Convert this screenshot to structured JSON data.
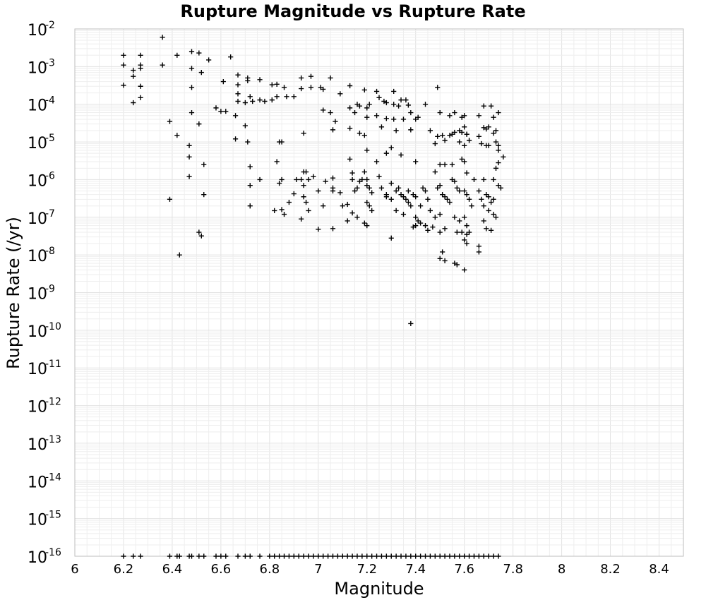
{
  "chart_data": {
    "type": "scatter",
    "title": "Rupture Magnitude vs Rupture Rate",
    "xlabel": "Magnitude",
    "ylabel": "Rupture Rate (/yr)",
    "xlim": [
      6.0,
      8.5
    ],
    "ylim": [
      1e-16,
      0.01
    ],
    "yscale": "log",
    "grid": true,
    "marker": "plus",
    "marker_color": "#000000",
    "x_ticks": [
      "6",
      "6.2",
      "6.4",
      "6.6",
      "6.8",
      "7",
      "7.2",
      "7.4",
      "7.6",
      "7.8",
      "8",
      "8.2",
      "8.4"
    ],
    "y_ticks": [
      {
        "base": "10",
        "exp": "-2"
      },
      {
        "base": "10",
        "exp": "-3"
      },
      {
        "base": "10",
        "exp": "-4"
      },
      {
        "base": "10",
        "exp": "-5"
      },
      {
        "base": "10",
        "exp": "-6"
      },
      {
        "base": "10",
        "exp": "-7"
      },
      {
        "base": "10",
        "exp": "-8"
      },
      {
        "base": "10",
        "exp": "-9"
      },
      {
        "base": "10",
        "exp": "-10"
      },
      {
        "base": "10",
        "exp": "-11"
      },
      {
        "base": "10",
        "exp": "-12"
      },
      {
        "base": "10",
        "exp": "-13"
      },
      {
        "base": "10",
        "exp": "-14"
      },
      {
        "base": "10",
        "exp": "-15"
      },
      {
        "base": "10",
        "exp": "-16"
      }
    ],
    "points": [
      [
        6.36,
        0.006
      ],
      [
        6.2,
        0.002
      ],
      [
        6.27,
        0.002
      ],
      [
        6.42,
        0.002
      ],
      [
        6.48,
        0.0025
      ],
      [
        6.51,
        0.0023
      ],
      [
        6.55,
        0.0015
      ],
      [
        6.64,
        0.0018
      ],
      [
        6.2,
        0.0011
      ],
      [
        6.27,
        0.0011
      ],
      [
        6.36,
        0.0011
      ],
      [
        6.24,
        0.0008
      ],
      [
        6.27,
        0.0009
      ],
      [
        6.48,
        0.0009
      ],
      [
        6.52,
        0.0007
      ],
      [
        6.24,
        0.00055
      ],
      [
        6.2,
        0.00032
      ],
      [
        6.27,
        0.0003
      ],
      [
        6.48,
        0.00028
      ],
      [
        6.27,
        0.00015
      ],
      [
        6.24,
        0.00011
      ],
      [
        6.61,
        0.0004
      ],
      [
        6.67,
        0.0006
      ],
      [
        6.71,
        0.0005
      ],
      [
        6.71,
        0.00042
      ],
      [
        6.76,
        0.00045
      ],
      [
        6.67,
        0.00033
      ],
      [
        6.81,
        0.00033
      ],
      [
        6.83,
        0.00034
      ],
      [
        6.86,
        0.00028
      ],
      [
        6.67,
        0.00019
      ],
      [
        6.72,
        0.00016
      ],
      [
        6.67,
        0.00012
      ],
      [
        6.7,
        0.00011
      ],
      [
        6.73,
        0.00012
      ],
      [
        6.76,
        0.00013
      ],
      [
        6.78,
        0.00012
      ],
      [
        6.81,
        0.00013
      ],
      [
        6.83,
        0.00016
      ],
      [
        6.87,
        0.00016
      ],
      [
        6.9,
        0.00016
      ],
      [
        6.93,
        0.00026
      ],
      [
        6.93,
        0.0005
      ],
      [
        6.97,
        0.00055
      ],
      [
        6.97,
        0.00028
      ],
      [
        7.01,
        0.00028
      ],
      [
        7.02,
        0.00025
      ],
      [
        7.05,
        0.0005
      ],
      [
        7.09,
        0.00019
      ],
      [
        7.13,
        0.00031
      ],
      [
        7.19,
        0.00024
      ],
      [
        7.24,
        0.00022
      ],
      [
        7.25,
        0.00015
      ],
      [
        7.27,
        0.00012
      ],
      [
        7.31,
        0.0001
      ],
      [
        7.34,
        0.00013
      ],
      [
        7.36,
        0.00013
      ],
      [
        7.33,
        9e-05
      ],
      [
        7.37,
        9.5e-05
      ],
      [
        7.31,
        0.00022
      ],
      [
        7.28,
        0.00011
      ],
      [
        7.17,
        9e-05
      ],
      [
        7.16,
        0.0001
      ],
      [
        7.21,
        0.0001
      ],
      [
        7.2,
        8e-05
      ],
      [
        7.13,
        8e-05
      ],
      [
        7.05,
        6e-05
      ],
      [
        7.02,
        7e-05
      ],
      [
        7.15,
        6e-05
      ],
      [
        7.2,
        4.5e-05
      ],
      [
        7.24,
        5e-05
      ],
      [
        7.28,
        4.2e-05
      ],
      [
        7.31,
        4e-05
      ],
      [
        7.35,
        4e-05
      ],
      [
        7.38,
        6e-05
      ],
      [
        7.41,
        4.5e-05
      ],
      [
        7.4,
        4e-05
      ],
      [
        7.44,
        0.0001
      ],
      [
        7.49,
        0.00028
      ],
      [
        7.5,
        6e-05
      ],
      [
        7.54,
        5e-05
      ],
      [
        7.56,
        6e-05
      ],
      [
        7.59,
        4.5e-05
      ],
      [
        7.6,
        5e-05
      ],
      [
        7.66,
        5e-05
      ],
      [
        7.68,
        9e-05
      ],
      [
        7.71,
        9e-05
      ],
      [
        7.72,
        4.5e-05
      ],
      [
        7.74,
        6e-05
      ],
      [
        7.07,
        3.5e-05
      ],
      [
        7.06,
        2.1e-05
      ],
      [
        7.13,
        2.3e-05
      ],
      [
        7.17,
        1.7e-05
      ],
      [
        7.19,
        1.5e-05
      ],
      [
        7.26,
        2.5e-05
      ],
      [
        7.32,
        2e-05
      ],
      [
        7.38,
        2.1e-05
      ],
      [
        7.46,
        2e-05
      ],
      [
        7.51,
        1.5e-05
      ],
      [
        7.52,
        1.1e-05
      ],
      [
        7.55,
        1.6e-05
      ],
      [
        7.58,
        2e-05
      ],
      [
        7.6,
        2.5e-05
      ],
      [
        7.61,
        1.6e-05
      ],
      [
        7.49,
        1.4e-05
      ],
      [
        7.54,
        1.5e-05
      ],
      [
        7.56,
        1.8e-05
      ],
      [
        7.59,
        1.8e-05
      ],
      [
        7.61,
        1.6e-05
      ],
      [
        7.62,
        1.1e-05
      ],
      [
        7.66,
        1.4e-05
      ],
      [
        7.68,
        2.4e-05
      ],
      [
        7.69,
        2.2e-05
      ],
      [
        7.7,
        2.5e-05
      ],
      [
        7.72,
        1.7e-05
      ],
      [
        7.73,
        2e-05
      ],
      [
        7.48,
        9e-06
      ],
      [
        7.58,
        1e-05
      ],
      [
        7.6,
        8e-06
      ],
      [
        7.67,
        9e-06
      ],
      [
        7.69,
        8e-06
      ],
      [
        7.7,
        8e-06
      ],
      [
        7.73,
        1e-05
      ],
      [
        7.74,
        6e-06
      ],
      [
        7.74,
        8e-06
      ],
      [
        7.76,
        4e-06
      ],
      [
        6.7,
        2.7e-05
      ],
      [
        6.71,
        1e-05
      ],
      [
        6.66,
        1.2e-05
      ],
      [
        6.84,
        1e-05
      ],
      [
        6.85,
        1e-05
      ],
      [
        6.83,
        3e-06
      ],
      [
        6.94,
        1.7e-05
      ],
      [
        6.58,
        8e-05
      ],
      [
        6.6,
        6.5e-05
      ],
      [
        6.62,
        6.5e-05
      ],
      [
        6.66,
        5e-05
      ],
      [
        6.48,
        6e-05
      ],
      [
        6.39,
        3.5e-05
      ],
      [
        6.51,
        3e-05
      ],
      [
        6.42,
        1.5e-05
      ],
      [
        6.47,
        8e-06
      ],
      [
        6.47,
        4e-06
      ],
      [
        6.53,
        2.5e-06
      ],
      [
        6.47,
        1.2e-06
      ],
      [
        6.53,
        4e-07
      ],
      [
        6.39,
        3e-07
      ],
      [
        6.51,
        4e-08
      ],
      [
        6.52,
        3.2e-08
      ],
      [
        6.43,
        1e-08
      ],
      [
        6.72,
        2.2e-06
      ],
      [
        6.72,
        7e-07
      ],
      [
        6.76,
        1e-06
      ],
      [
        6.72,
        2e-07
      ],
      [
        6.84,
        8e-07
      ],
      [
        6.85,
        1e-06
      ],
      [
        6.82,
        1.5e-07
      ],
      [
        6.85,
        1.6e-07
      ],
      [
        6.86,
        1.2e-07
      ],
      [
        6.88,
        2.5e-07
      ],
      [
        6.9,
        4.2e-07
      ],
      [
        6.91,
        1e-06
      ],
      [
        6.93,
        1e-06
      ],
      [
        6.94,
        1.6e-06
      ],
      [
        6.95,
        1.6e-06
      ],
      [
        6.94,
        7e-07
      ],
      [
        6.94,
        3.5e-07
      ],
      [
        6.95,
        2.5e-07
      ],
      [
        6.96,
        1.5e-07
      ],
      [
        6.93,
        9e-08
      ],
      [
        7.0,
        5e-07
      ],
      [
        7.0,
        4.8e-08
      ],
      [
        7.03,
        9e-07
      ],
      [
        7.06,
        6e-07
      ],
      [
        7.06,
        5e-07
      ],
      [
        7.06,
        1.1e-06
      ],
      [
        7.09,
        4.5e-07
      ],
      [
        7.1,
        2e-07
      ],
      [
        7.12,
        2.2e-07
      ],
      [
        7.12,
        8e-08
      ],
      [
        7.06,
        5e-08
      ],
      [
        7.02,
        2e-07
      ],
      [
        7.14,
        1e-06
      ],
      [
        7.15,
        5e-07
      ],
      [
        7.16,
        6e-07
      ],
      [
        7.17,
        9e-07
      ],
      [
        7.19,
        1.6e-06
      ],
      [
        7.2,
        1e-06
      ],
      [
        7.2,
        7e-07
      ],
      [
        7.21,
        6e-07
      ],
      [
        7.22,
        4.5e-07
      ],
      [
        7.2,
        2.5e-07
      ],
      [
        7.21,
        2e-07
      ],
      [
        7.22,
        1.5e-07
      ],
      [
        7.19,
        7e-08
      ],
      [
        7.2,
        6e-08
      ],
      [
        7.16,
        1e-07
      ],
      [
        7.14,
        1.3e-07
      ],
      [
        7.24,
        3e-06
      ],
      [
        7.25,
        1.2e-06
      ],
      [
        7.26,
        6e-07
      ],
      [
        7.28,
        4e-07
      ],
      [
        7.28,
        3.5e-07
      ],
      [
        7.3,
        3e-07
      ],
      [
        7.3,
        8e-07
      ],
      [
        7.32,
        5e-07
      ],
      [
        7.33,
        6e-07
      ],
      [
        7.34,
        4e-07
      ],
      [
        7.35,
        3.5e-07
      ],
      [
        7.36,
        3e-07
      ],
      [
        7.37,
        2.5e-07
      ],
      [
        7.38,
        2e-07
      ],
      [
        7.32,
        1.5e-07
      ],
      [
        7.35,
        1.2e-07
      ],
      [
        7.3,
        2.8e-08
      ],
      [
        7.37,
        5e-07
      ],
      [
        7.39,
        4e-07
      ],
      [
        7.4,
        3.5e-07
      ],
      [
        7.42,
        2e-07
      ],
      [
        7.43,
        6e-07
      ],
      [
        7.44,
        5e-07
      ],
      [
        7.45,
        3e-07
      ],
      [
        7.46,
        1.5e-07
      ],
      [
        7.4,
        1e-07
      ],
      [
        7.41,
        8e-08
      ],
      [
        7.42,
        7e-08
      ],
      [
        7.4,
        6e-08
      ],
      [
        7.39,
        5.5e-08
      ],
      [
        7.44,
        6e-08
      ],
      [
        7.45,
        4.5e-08
      ],
      [
        7.47,
        5.5e-08
      ],
      [
        7.48,
        1e-07
      ],
      [
        7.49,
        6e-07
      ],
      [
        7.5,
        7e-07
      ],
      [
        7.51,
        4e-07
      ],
      [
        7.52,
        3.5e-07
      ],
      [
        7.53,
        3e-07
      ],
      [
        7.54,
        2.5e-07
      ],
      [
        7.5,
        1.2e-07
      ],
      [
        7.52,
        5e-08
      ],
      [
        7.5,
        4e-08
      ],
      [
        7.51,
        1.2e-08
      ],
      [
        7.5,
        8e-09
      ],
      [
        7.52,
        7e-09
      ],
      [
        7.56,
        6e-09
      ],
      [
        7.57,
        5.5e-09
      ],
      [
        7.6,
        4e-09
      ],
      [
        7.55,
        1e-06
      ],
      [
        7.56,
        9e-07
      ],
      [
        7.57,
        6e-07
      ],
      [
        7.58,
        5e-07
      ],
      [
        7.6,
        5e-07
      ],
      [
        7.61,
        4e-07
      ],
      [
        7.62,
        3e-07
      ],
      [
        7.63,
        2e-07
      ],
      [
        7.56,
        1e-07
      ],
      [
        7.58,
        8e-08
      ],
      [
        7.6,
        1e-07
      ],
      [
        7.61,
        6e-08
      ],
      [
        7.57,
        4e-08
      ],
      [
        7.59,
        4e-08
      ],
      [
        7.61,
        3.5e-08
      ],
      [
        7.62,
        4e-08
      ],
      [
        7.6,
        2.5e-08
      ],
      [
        7.61,
        2e-08
      ],
      [
        7.64,
        1e-06
      ],
      [
        7.66,
        5e-07
      ],
      [
        7.67,
        3e-07
      ],
      [
        7.68,
        2e-07
      ],
      [
        7.69,
        4e-07
      ],
      [
        7.7,
        3.5e-07
      ],
      [
        7.71,
        2.5e-07
      ],
      [
        7.72,
        3e-07
      ],
      [
        7.7,
        1.5e-07
      ],
      [
        7.72,
        1.2e-07
      ],
      [
        7.73,
        1e-07
      ],
      [
        7.68,
        8e-08
      ],
      [
        7.69,
        5e-08
      ],
      [
        7.71,
        4.5e-08
      ],
      [
        7.66,
        1.7e-08
      ],
      [
        7.66,
        1.2e-08
      ],
      [
        7.68,
        1e-06
      ],
      [
        7.72,
        1e-06
      ],
      [
        7.74,
        7e-07
      ],
      [
        7.75,
        6e-07
      ],
      [
        7.73,
        2e-06
      ],
      [
        7.74,
        2.8e-06
      ],
      [
        7.61,
        1.5e-06
      ],
      [
        7.55,
        2.5e-06
      ],
      [
        7.59,
        3.5e-06
      ],
      [
        7.6,
        3e-06
      ],
      [
        7.52,
        2.5e-06
      ],
      [
        7.5,
        2.5e-06
      ],
      [
        7.48,
        1.6e-06
      ],
      [
        7.4,
        3e-06
      ],
      [
        7.34,
        4.5e-06
      ],
      [
        7.3,
        7e-06
      ],
      [
        7.28,
        5e-06
      ],
      [
        7.2,
        6e-06
      ],
      [
        7.18,
        1e-06
      ],
      [
        7.14,
        1.5e-06
      ],
      [
        7.13,
        3.5e-06
      ],
      [
        6.98,
        1.2e-06
      ],
      [
        6.96,
        1e-06
      ],
      [
        7.38,
        1.5e-10
      ],
      [
        6.2,
        1e-16
      ],
      [
        6.24,
        1e-16
      ],
      [
        6.27,
        1e-16
      ],
      [
        6.39,
        1e-16
      ],
      [
        6.42,
        1e-16
      ],
      [
        6.43,
        1e-16
      ],
      [
        6.47,
        1e-16
      ],
      [
        6.48,
        1e-16
      ],
      [
        6.51,
        1e-16
      ],
      [
        6.53,
        1e-16
      ],
      [
        6.58,
        1e-16
      ],
      [
        6.6,
        1e-16
      ],
      [
        6.62,
        1e-16
      ],
      [
        6.67,
        1e-16
      ],
      [
        6.7,
        1e-16
      ],
      [
        6.72,
        1e-16
      ],
      [
        6.76,
        1e-16
      ],
      [
        6.8,
        1e-16
      ],
      [
        6.82,
        1e-16
      ],
      [
        6.84,
        1e-16
      ],
      [
        6.86,
        1e-16
      ],
      [
        6.88,
        1e-16
      ],
      [
        6.9,
        1e-16
      ],
      [
        6.92,
        1e-16
      ],
      [
        6.94,
        1e-16
      ],
      [
        6.96,
        1e-16
      ],
      [
        6.98,
        1e-16
      ],
      [
        7.0,
        1e-16
      ],
      [
        7.02,
        1e-16
      ],
      [
        7.04,
        1e-16
      ],
      [
        7.06,
        1e-16
      ],
      [
        7.08,
        1e-16
      ],
      [
        7.1,
        1e-16
      ],
      [
        7.12,
        1e-16
      ],
      [
        7.14,
        1e-16
      ],
      [
        7.16,
        1e-16
      ],
      [
        7.18,
        1e-16
      ],
      [
        7.2,
        1e-16
      ],
      [
        7.22,
        1e-16
      ],
      [
        7.24,
        1e-16
      ],
      [
        7.26,
        1e-16
      ],
      [
        7.28,
        1e-16
      ],
      [
        7.3,
        1e-16
      ],
      [
        7.32,
        1e-16
      ],
      [
        7.34,
        1e-16
      ],
      [
        7.36,
        1e-16
      ],
      [
        7.38,
        1e-16
      ],
      [
        7.4,
        1e-16
      ],
      [
        7.42,
        1e-16
      ],
      [
        7.44,
        1e-16
      ],
      [
        7.46,
        1e-16
      ],
      [
        7.48,
        1e-16
      ],
      [
        7.5,
        1e-16
      ],
      [
        7.52,
        1e-16
      ],
      [
        7.54,
        1e-16
      ],
      [
        7.56,
        1e-16
      ],
      [
        7.58,
        1e-16
      ],
      [
        7.6,
        1e-16
      ],
      [
        7.62,
        1e-16
      ],
      [
        7.64,
        1e-16
      ],
      [
        7.66,
        1e-16
      ],
      [
        7.68,
        1e-16
      ],
      [
        7.7,
        1e-16
      ],
      [
        7.72,
        1e-16
      ],
      [
        7.74,
        1e-16
      ]
    ]
  }
}
